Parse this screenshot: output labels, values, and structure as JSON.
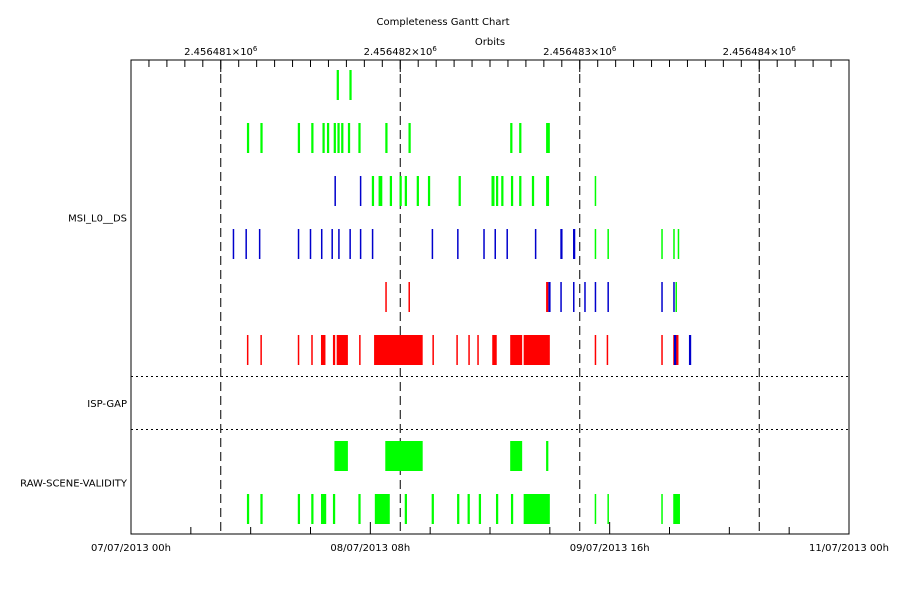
{
  "chart_data": {
    "type": "gantt",
    "title": "Completeness Gantt Chart",
    "top_axis_label": "Orbits",
    "top_ticks": [
      {
        "mantissa": "2.456481",
        "exp": "6",
        "x": 2456481
      },
      {
        "mantissa": "2.456482",
        "exp": "6",
        "x": 2456482
      },
      {
        "mantissa": "2.456483",
        "exp": "6",
        "x": 2456483
      },
      {
        "mantissa": "2.456484",
        "exp": "6",
        "x": 2456484
      }
    ],
    "top_axis_range": [
      2456480.5,
      2456484.5
    ],
    "bottom_axis_range_hours": [
      0,
      96
    ],
    "bottom_ticks": [
      {
        "label": "07/07/2013 00h",
        "hours": 0
      },
      {
        "label": "08/07/2013 08h",
        "hours": 32
      },
      {
        "label": "09/07/2013 16h",
        "hours": 64
      },
      {
        "label": "11/07/2013 00h",
        "hours": 96
      }
    ],
    "group_labels": [
      {
        "label": "MSI_L0__DS",
        "rows": [
          1,
          6
        ]
      },
      {
        "label": "ISP-GAP",
        "rows": [
          7,
          7
        ]
      },
      {
        "label": "RAW-SCENE-VALIDITY",
        "rows": [
          8,
          9
        ]
      }
    ],
    "group_separators_after_rows": [
      6,
      7
    ],
    "colors": {
      "green": "#00ff00",
      "blue": "#0000cc",
      "red": "#ff0000"
    },
    "rows": [
      {
        "row": 1,
        "segments": [
          {
            "color": "green",
            "start": 27.5,
            "end": 27.8
          },
          {
            "color": "green",
            "start": 29.2,
            "end": 29.5
          }
        ]
      },
      {
        "row": 2,
        "segments": [
          {
            "color": "green",
            "start": 15.5,
            "end": 15.8
          },
          {
            "color": "green",
            "start": 17.3,
            "end": 17.6
          },
          {
            "color": "green",
            "start": 22.3,
            "end": 22.6
          },
          {
            "color": "green",
            "start": 24.1,
            "end": 24.4
          },
          {
            "color": "green",
            "start": 25.6,
            "end": 25.9
          },
          {
            "color": "green",
            "start": 26.2,
            "end": 26.5
          },
          {
            "color": "green",
            "start": 27.1,
            "end": 27.4
          },
          {
            "color": "green",
            "start": 27.6,
            "end": 27.9
          },
          {
            "color": "green",
            "start": 28.1,
            "end": 28.4
          },
          {
            "color": "green",
            "start": 29.0,
            "end": 29.3
          },
          {
            "color": "green",
            "start": 30.4,
            "end": 30.7
          },
          {
            "color": "green",
            "start": 34.0,
            "end": 34.3
          },
          {
            "color": "green",
            "start": 37.1,
            "end": 37.4
          },
          {
            "color": "green",
            "start": 50.7,
            "end": 51.0
          },
          {
            "color": "green",
            "start": 51.9,
            "end": 52.2
          },
          {
            "color": "green",
            "start": 55.5,
            "end": 56.0
          }
        ]
      },
      {
        "row": 3,
        "segments": [
          {
            "color": "blue",
            "start": 27.2,
            "end": 27.4
          },
          {
            "color": "blue",
            "start": 30.6,
            "end": 30.8
          },
          {
            "color": "green",
            "start": 32.2,
            "end": 32.5
          },
          {
            "color": "green",
            "start": 33.1,
            "end": 33.6
          },
          {
            "color": "green",
            "start": 34.6,
            "end": 34.9
          },
          {
            "color": "green",
            "start": 35.9,
            "end": 36.2
          },
          {
            "color": "green",
            "start": 36.6,
            "end": 36.9
          },
          {
            "color": "green",
            "start": 38.2,
            "end": 38.5
          },
          {
            "color": "green",
            "start": 39.7,
            "end": 40.0
          },
          {
            "color": "green",
            "start": 43.8,
            "end": 44.1
          },
          {
            "color": "green",
            "start": 48.2,
            "end": 48.6
          },
          {
            "color": "green",
            "start": 48.8,
            "end": 49.1
          },
          {
            "color": "green",
            "start": 49.5,
            "end": 49.8
          },
          {
            "color": "green",
            "start": 50.8,
            "end": 51.1
          },
          {
            "color": "green",
            "start": 51.9,
            "end": 52.2
          },
          {
            "color": "green",
            "start": 53.6,
            "end": 53.9
          },
          {
            "color": "green",
            "start": 55.5,
            "end": 55.9
          },
          {
            "color": "green",
            "start": 62.0,
            "end": 62.2
          }
        ]
      },
      {
        "row": 4,
        "segments": [
          {
            "color": "blue",
            "start": 13.6,
            "end": 13.8
          },
          {
            "color": "blue",
            "start": 15.3,
            "end": 15.5
          },
          {
            "color": "blue",
            "start": 17.1,
            "end": 17.3
          },
          {
            "color": "blue",
            "start": 22.3,
            "end": 22.5
          },
          {
            "color": "blue",
            "start": 23.9,
            "end": 24.1
          },
          {
            "color": "blue",
            "start": 25.4,
            "end": 25.6
          },
          {
            "color": "blue",
            "start": 26.8,
            "end": 27.0
          },
          {
            "color": "blue",
            "start": 27.7,
            "end": 27.9
          },
          {
            "color": "blue",
            "start": 29.2,
            "end": 29.4
          },
          {
            "color": "blue",
            "start": 30.6,
            "end": 30.8
          },
          {
            "color": "blue",
            "start": 32.2,
            "end": 32.4
          },
          {
            "color": "blue",
            "start": 40.2,
            "end": 40.4
          },
          {
            "color": "blue",
            "start": 43.6,
            "end": 43.8
          },
          {
            "color": "blue",
            "start": 47.1,
            "end": 47.3
          },
          {
            "color": "blue",
            "start": 48.6,
            "end": 48.8
          },
          {
            "color": "blue",
            "start": 50.2,
            "end": 50.4
          },
          {
            "color": "blue",
            "start": 54.0,
            "end": 54.2
          },
          {
            "color": "blue",
            "start": 57.4,
            "end": 57.7
          },
          {
            "color": "blue",
            "start": 59.1,
            "end": 59.4
          },
          {
            "color": "green",
            "start": 62.0,
            "end": 62.2
          },
          {
            "color": "green",
            "start": 63.7,
            "end": 63.9
          },
          {
            "color": "green",
            "start": 70.9,
            "end": 71.1
          },
          {
            "color": "green",
            "start": 72.5,
            "end": 72.7
          },
          {
            "color": "green",
            "start": 73.1,
            "end": 73.3
          }
        ]
      },
      {
        "row": 5,
        "segments": [
          {
            "color": "red",
            "start": 34.0,
            "end": 34.2
          },
          {
            "color": "red",
            "start": 37.1,
            "end": 37.3
          },
          {
            "color": "red",
            "start": 55.5,
            "end": 55.8
          },
          {
            "color": "blue",
            "start": 55.8,
            "end": 56.1
          },
          {
            "color": "blue",
            "start": 57.4,
            "end": 57.6
          },
          {
            "color": "blue",
            "start": 59.1,
            "end": 59.3
          },
          {
            "color": "blue",
            "start": 60.6,
            "end": 60.8
          },
          {
            "color": "blue",
            "start": 62.0,
            "end": 62.2
          },
          {
            "color": "blue",
            "start": 63.7,
            "end": 63.9
          },
          {
            "color": "blue",
            "start": 70.9,
            "end": 71.1
          },
          {
            "color": "blue",
            "start": 72.5,
            "end": 72.7
          },
          {
            "color": "green",
            "start": 72.8,
            "end": 73.0
          }
        ]
      },
      {
        "row": 6,
        "segments": [
          {
            "color": "red",
            "start": 15.5,
            "end": 15.7
          },
          {
            "color": "red",
            "start": 17.3,
            "end": 17.5
          },
          {
            "color": "red",
            "start": 22.3,
            "end": 22.5
          },
          {
            "color": "red",
            "start": 24.1,
            "end": 24.3
          },
          {
            "color": "red",
            "start": 25.4,
            "end": 26.0
          },
          {
            "color": "red",
            "start": 27.0,
            "end": 27.3
          },
          {
            "color": "red",
            "start": 27.5,
            "end": 29.0
          },
          {
            "color": "red",
            "start": 30.5,
            "end": 30.7
          },
          {
            "color": "red",
            "start": 32.5,
            "end": 39.0
          },
          {
            "color": "red",
            "start": 40.3,
            "end": 40.5
          },
          {
            "color": "red",
            "start": 43.5,
            "end": 43.7
          },
          {
            "color": "red",
            "start": 45.1,
            "end": 45.3
          },
          {
            "color": "red",
            "start": 46.3,
            "end": 46.5
          },
          {
            "color": "red",
            "start": 48.3,
            "end": 48.9
          },
          {
            "color": "red",
            "start": 50.7,
            "end": 52.3
          },
          {
            "color": "red",
            "start": 52.5,
            "end": 56.0
          },
          {
            "color": "red",
            "start": 62.0,
            "end": 62.2
          },
          {
            "color": "red",
            "start": 63.6,
            "end": 63.8
          },
          {
            "color": "red",
            "start": 70.9,
            "end": 71.1
          },
          {
            "color": "red",
            "start": 72.5,
            "end": 73.2
          },
          {
            "color": "blue",
            "start": 72.6,
            "end": 72.9
          },
          {
            "color": "blue",
            "start": 74.6,
            "end": 74.9
          }
        ]
      },
      {
        "row": 7,
        "segments": []
      },
      {
        "row": 8,
        "segments": [
          {
            "color": "green",
            "start": 27.2,
            "end": 29.0
          },
          {
            "color": "green",
            "start": 34.0,
            "end": 39.0
          },
          {
            "color": "green",
            "start": 50.7,
            "end": 52.3
          },
          {
            "color": "green",
            "start": 55.5,
            "end": 55.8
          }
        ]
      },
      {
        "row": 9,
        "segments": [
          {
            "color": "green",
            "start": 15.5,
            "end": 15.8
          },
          {
            "color": "green",
            "start": 17.3,
            "end": 17.6
          },
          {
            "color": "green",
            "start": 22.3,
            "end": 22.6
          },
          {
            "color": "green",
            "start": 24.1,
            "end": 24.4
          },
          {
            "color": "green",
            "start": 25.4,
            "end": 26.1
          },
          {
            "color": "green",
            "start": 27.0,
            "end": 27.3
          },
          {
            "color": "green",
            "start": 30.4,
            "end": 30.7
          },
          {
            "color": "green",
            "start": 32.6,
            "end": 34.6
          },
          {
            "color": "green",
            "start": 36.6,
            "end": 36.9
          },
          {
            "color": "green",
            "start": 40.2,
            "end": 40.5
          },
          {
            "color": "green",
            "start": 43.6,
            "end": 43.9
          },
          {
            "color": "green",
            "start": 45.0,
            "end": 45.3
          },
          {
            "color": "green",
            "start": 46.5,
            "end": 46.8
          },
          {
            "color": "green",
            "start": 48.8,
            "end": 49.1
          },
          {
            "color": "green",
            "start": 50.8,
            "end": 51.1
          },
          {
            "color": "green",
            "start": 52.5,
            "end": 56.0
          },
          {
            "color": "green",
            "start": 62.0,
            "end": 62.2
          },
          {
            "color": "green",
            "start": 63.7,
            "end": 63.9
          },
          {
            "color": "green",
            "start": 70.9,
            "end": 71.1
          },
          {
            "color": "green",
            "start": 72.5,
            "end": 73.4
          }
        ]
      }
    ]
  }
}
